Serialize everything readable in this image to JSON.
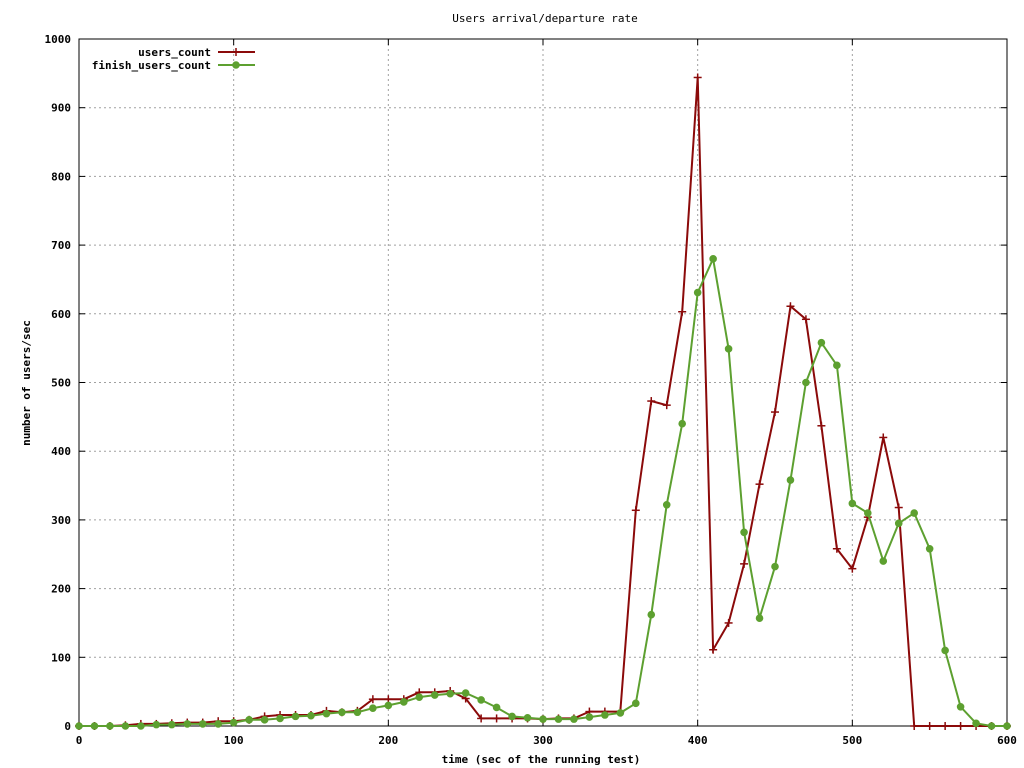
{
  "chart_data": {
    "type": "line",
    "title": "Users arrival/departure rate",
    "xlabel": "time (sec of the running test)",
    "ylabel": "number of users/sec",
    "xlim": [
      0,
      600
    ],
    "ylim": [
      0,
      1000
    ],
    "xticks": [
      0,
      100,
      200,
      300,
      400,
      500,
      600
    ],
    "yticks": [
      0,
      100,
      200,
      300,
      400,
      500,
      600,
      700,
      800,
      900,
      1000
    ],
    "grid": true,
    "legend_position": "top-left",
    "series": [
      {
        "name": "users_count",
        "color": "#8b0a0a",
        "marker": "plus",
        "x": [
          0,
          10,
          20,
          30,
          40,
          50,
          60,
          70,
          80,
          90,
          100,
          110,
          120,
          130,
          140,
          150,
          160,
          170,
          180,
          190,
          200,
          210,
          220,
          230,
          240,
          250,
          260,
          270,
          280,
          290,
          300,
          310,
          320,
          330,
          340,
          350,
          360,
          370,
          380,
          390,
          400,
          410,
          420,
          430,
          440,
          450,
          460,
          470,
          480,
          490,
          500,
          510,
          520,
          530,
          540,
          550,
          560,
          570,
          580,
          590,
          600
        ],
        "y": [
          0,
          0,
          0,
          1,
          3,
          3,
          4,
          5,
          5,
          7,
          7,
          9,
          14,
          16,
          16,
          16,
          22,
          20,
          22,
          39,
          39,
          39,
          49,
          49,
          51,
          40,
          11,
          11,
          11,
          11,
          10,
          11,
          11,
          21,
          21,
          21,
          314,
          473,
          467,
          603,
          944,
          111,
          150,
          236,
          352,
          457,
          611,
          592,
          437,
          258,
          229,
          304,
          420,
          318,
          0,
          0,
          0,
          0,
          0,
          0,
          0
        ]
      },
      {
        "name": "finish_users_count",
        "color": "#5da030",
        "marker": "circle",
        "x": [
          0,
          10,
          20,
          30,
          40,
          50,
          60,
          70,
          80,
          90,
          100,
          110,
          120,
          130,
          140,
          150,
          160,
          170,
          180,
          190,
          200,
          210,
          220,
          230,
          240,
          250,
          260,
          270,
          280,
          290,
          300,
          310,
          320,
          330,
          340,
          350,
          360,
          370,
          380,
          390,
          400,
          410,
          420,
          430,
          440,
          450,
          460,
          470,
          480,
          490,
          500,
          510,
          520,
          530,
          540,
          550,
          560,
          570,
          580,
          590,
          600
        ],
        "y": [
          0,
          0,
          0,
          0,
          0,
          2,
          2,
          3,
          3,
          3,
          5,
          9,
          9,
          11,
          14,
          15,
          18,
          20,
          20,
          26,
          30,
          35,
          42,
          45,
          47,
          48,
          38,
          27,
          14,
          12,
          10,
          10,
          10,
          13,
          16,
          19,
          33,
          162,
          322,
          440,
          631,
          680,
          549,
          282,
          157,
          232,
          358,
          500,
          558,
          525,
          324,
          310,
          240,
          295,
          310,
          258,
          110,
          28,
          4,
          0,
          0
        ]
      }
    ]
  }
}
